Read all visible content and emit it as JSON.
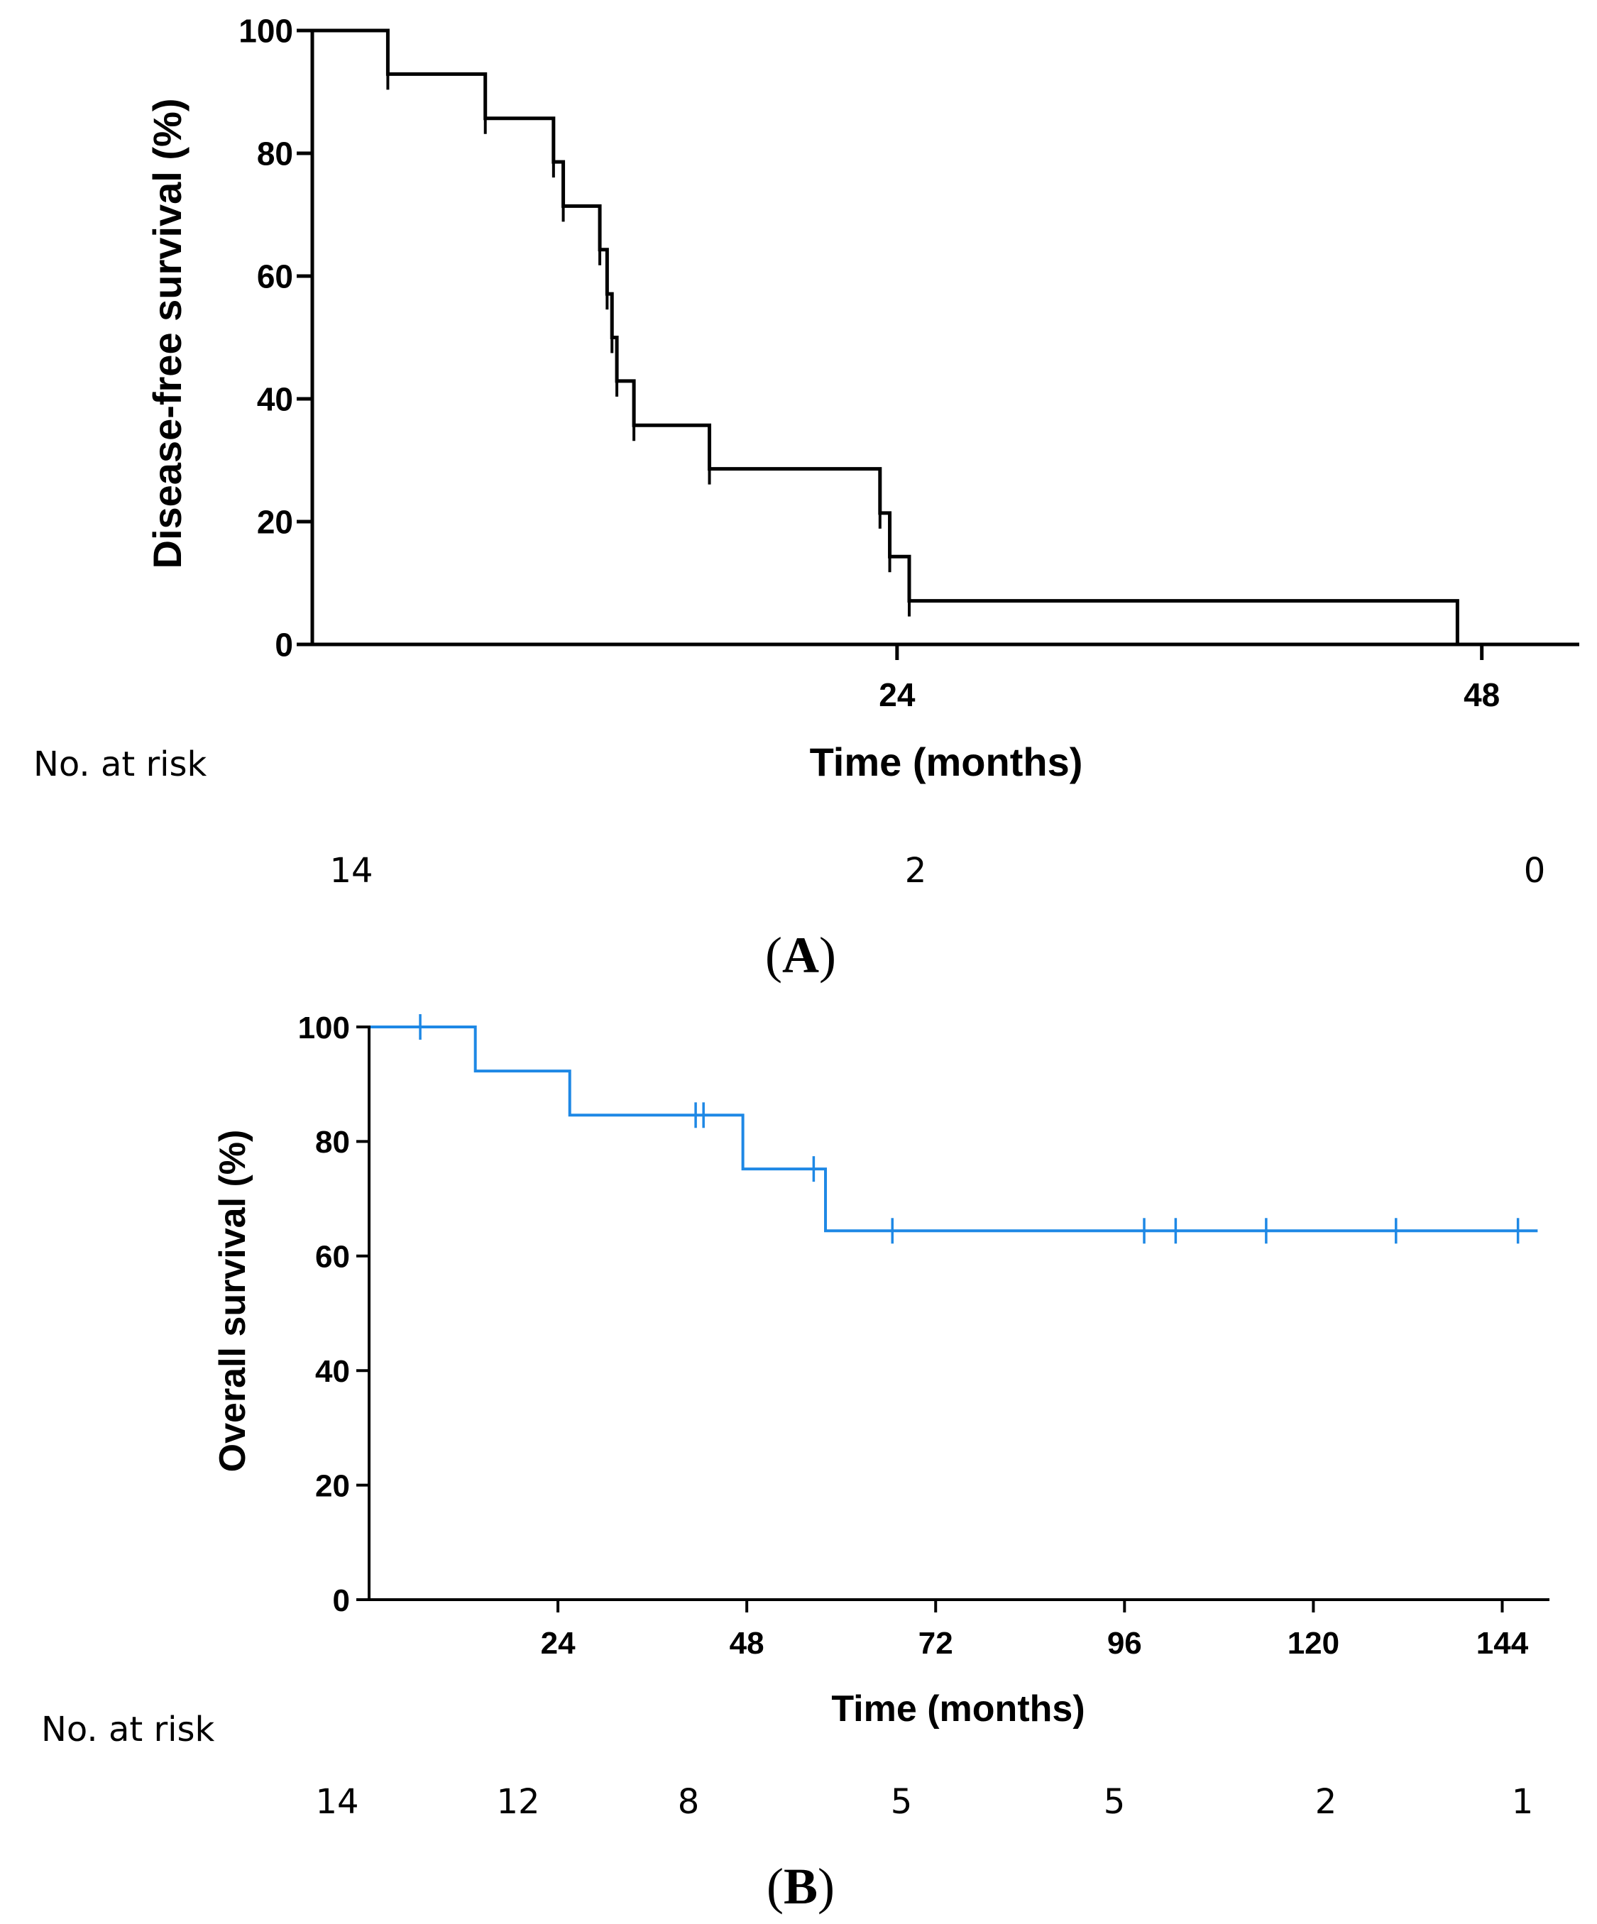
{
  "chart_data": [
    {
      "id": "A",
      "type": "line",
      "subtype": "kaplan-meier",
      "panel_label": "A",
      "ylabel": "Disease-free survival (%)",
      "xlabel": "Time (months)",
      "xlim": [
        0,
        52
      ],
      "ylim": [
        0,
        100
      ],
      "x_ticks": [
        24,
        48
      ],
      "y_ticks": [
        0,
        20,
        40,
        60,
        80,
        100
      ],
      "color": "#000000",
      "steps": [
        [
          0,
          100
        ],
        [
          3.1,
          92.9
        ],
        [
          7.1,
          85.7
        ],
        [
          9.9,
          78.6
        ],
        [
          10.3,
          71.4
        ],
        [
          11.8,
          64.3
        ],
        [
          12.1,
          57.1
        ],
        [
          12.3,
          50.0
        ],
        [
          12.5,
          42.9
        ],
        [
          13.2,
          35.7
        ],
        [
          16.3,
          28.6
        ],
        [
          23.3,
          21.4
        ],
        [
          23.7,
          14.3
        ],
        [
          24.5,
          7.1
        ],
        [
          47.0,
          0
        ]
      ],
      "end_x": 47.0,
      "censor_marks": [
        [
          3.1,
          92.9
        ],
        [
          7.1,
          85.7
        ],
        [
          9.9,
          78.6
        ],
        [
          10.3,
          71.4
        ],
        [
          11.8,
          64.3
        ],
        [
          12.1,
          57.1
        ],
        [
          12.3,
          50.0
        ],
        [
          12.5,
          42.9
        ],
        [
          13.2,
          35.7
        ],
        [
          16.3,
          28.6
        ],
        [
          23.3,
          21.4
        ],
        [
          23.7,
          14.3
        ],
        [
          24.5,
          7.1
        ]
      ],
      "risk_label": "No. at risk",
      "risk_values": [
        "14",
        "2",
        "0"
      ]
    },
    {
      "id": "B",
      "type": "line",
      "subtype": "kaplan-meier",
      "panel_label": "B",
      "ylabel": "Overall survival (%)",
      "xlabel": "Time (months)",
      "xlim": [
        0,
        150
      ],
      "ylim": [
        0,
        100
      ],
      "x_ticks": [
        24,
        48,
        72,
        96,
        120,
        144
      ],
      "y_ticks": [
        0,
        20,
        40,
        60,
        80,
        100
      ],
      "color": "#1e88e5",
      "steps": [
        [
          0,
          100
        ],
        [
          13.5,
          92.3
        ],
        [
          25.5,
          84.6
        ],
        [
          47.5,
          75.2
        ],
        [
          58.0,
          64.4
        ]
      ],
      "end_x": 148.5,
      "censor_marks": [
        [
          6.5,
          100
        ],
        [
          41.5,
          84.6
        ],
        [
          42.5,
          84.6
        ],
        [
          56.5,
          75.2
        ],
        [
          66.5,
          64.4
        ],
        [
          98.5,
          64.4
        ],
        [
          102.5,
          64.4
        ],
        [
          114.0,
          64.4
        ],
        [
          130.5,
          64.4
        ],
        [
          146.0,
          64.4
        ]
      ],
      "risk_label": "No. at risk",
      "risk_values": [
        "14",
        "12",
        "8",
        "5",
        "5",
        "2",
        "1"
      ]
    }
  ]
}
